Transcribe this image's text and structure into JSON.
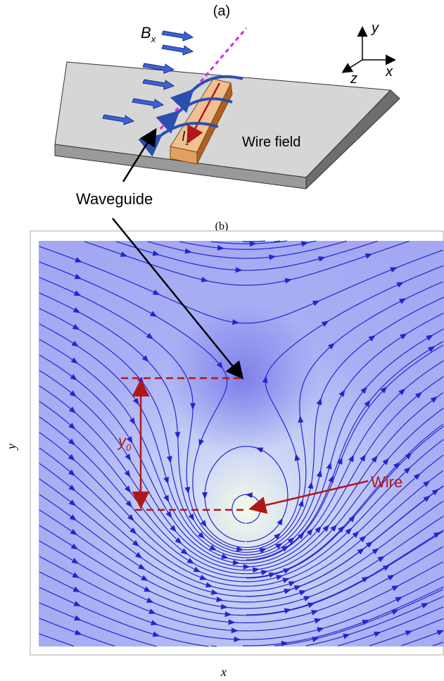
{
  "panel_a": {
    "label": "(a)",
    "field_label": "B",
    "field_subscript": "x",
    "axis_y": "y",
    "axis_z": "z",
    "axis_x": "x",
    "current_label": "I",
    "current_subscript": "z",
    "wire_field_label": "Wire field",
    "waveguide_label": "Waveguide"
  },
  "panel_b": {
    "label": "(b)",
    "offset_label": "y",
    "offset_subscript": "0",
    "wire_label": "Wire",
    "x_axis_label": "x",
    "y_axis_label": "y"
  }
}
